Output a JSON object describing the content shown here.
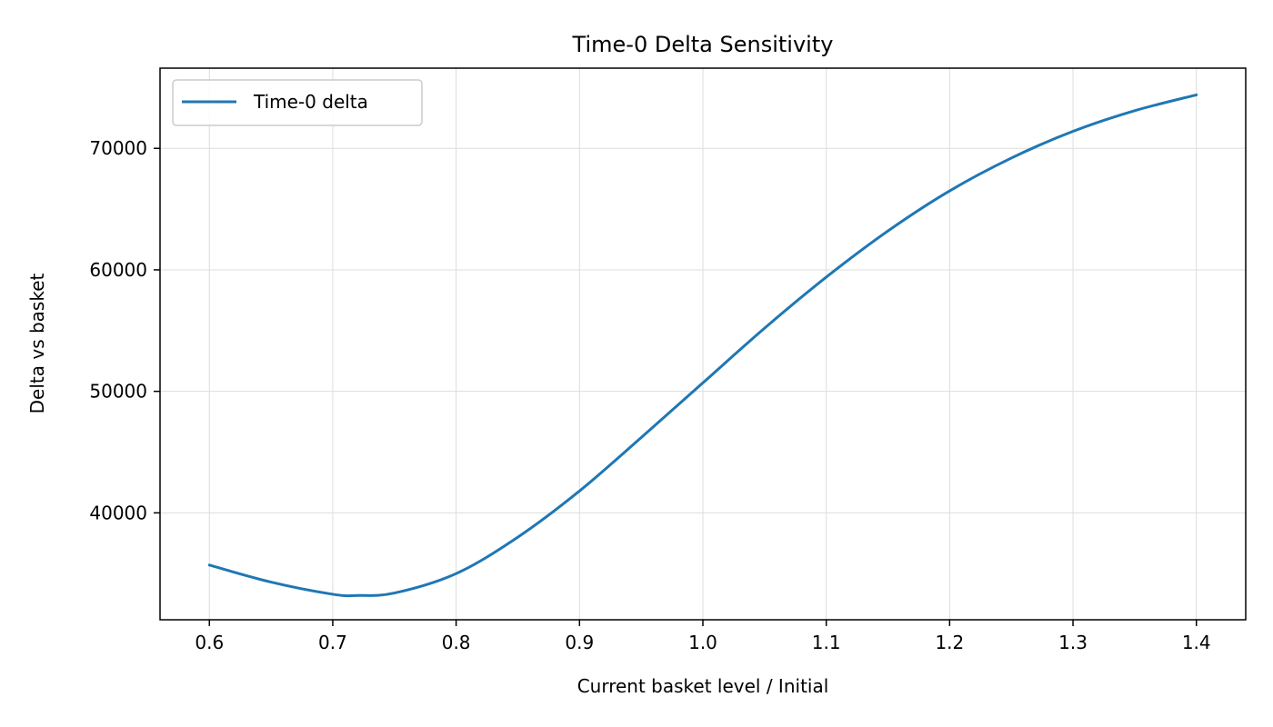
{
  "chart_data": {
    "type": "line",
    "title": "Time-0 Delta Sensitivity",
    "xlabel": "Current basket level / Initial",
    "ylabel": "Delta vs basket",
    "xlim": [
      0.56,
      1.44
    ],
    "ylim": [
      31200,
      76600
    ],
    "xticks": [
      0.6,
      0.7,
      0.8,
      0.9,
      1.0,
      1.1,
      1.2,
      1.3,
      1.4
    ],
    "xtick_labels": [
      "0.6",
      "0.7",
      "0.8",
      "0.9",
      "1.0",
      "1.1",
      "1.2",
      "1.3",
      "1.4"
    ],
    "yticks": [
      40000,
      50000,
      60000,
      70000
    ],
    "ytick_labels": [
      "40000",
      "50000",
      "60000",
      "70000"
    ],
    "grid": true,
    "legend_position": "top-left",
    "colors": {
      "series": "#1f77b4",
      "grid": "#dddddd",
      "axes": "#000000"
    },
    "series": [
      {
        "name": "Time-0 delta",
        "x": [
          0.6,
          0.65,
          0.7,
          0.72,
          0.75,
          0.8,
          0.85,
          0.9,
          0.95,
          1.0,
          1.05,
          1.1,
          1.15,
          1.2,
          1.25,
          1.3,
          1.35,
          1.4
        ],
        "y": [
          35700,
          34300,
          33300,
          33200,
          33400,
          35000,
          38000,
          41800,
          46200,
          50700,
          55200,
          59400,
          63200,
          66500,
          69200,
          71400,
          73100,
          74400
        ]
      }
    ]
  }
}
